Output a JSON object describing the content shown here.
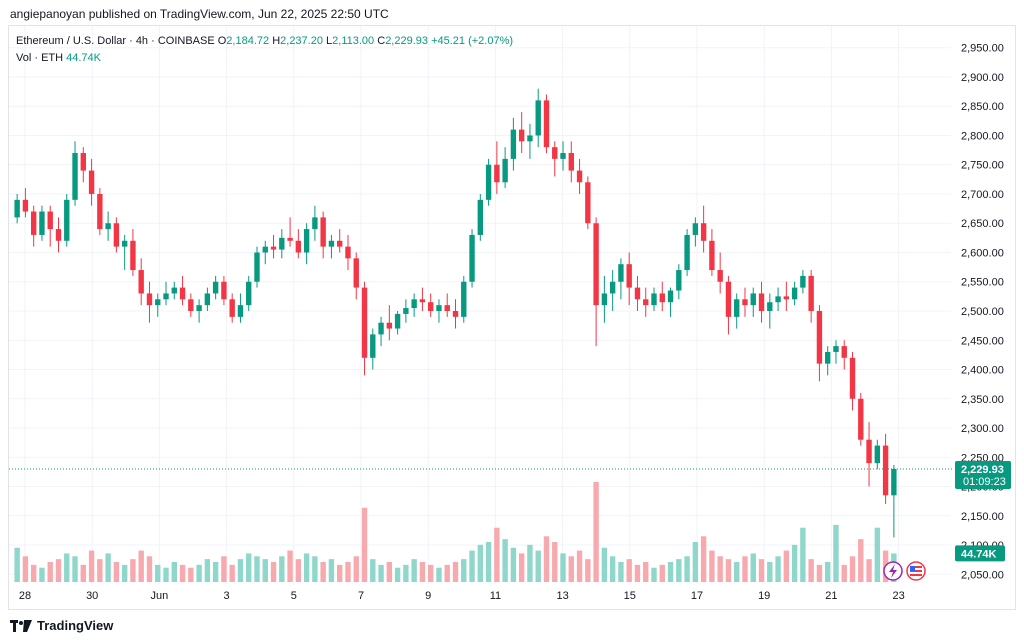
{
  "header": {
    "publisher": "angiepanoyan published on TradingView.com, Jun 22, 2025 22:50 UTC"
  },
  "legend": {
    "symbol": "Ethereum / U.S. Dollar · 4h · COINBASE",
    "o_label": "O",
    "o_value": "2,184.72",
    "h_label": "H",
    "h_value": "2,237.20",
    "l_label": "L",
    "l_value": "2,113.00",
    "c_label": "C",
    "c_value": "2,229.93",
    "change": "+45.21 (+2.07%)",
    "vol_label": "Vol · ETH",
    "vol_value": "44.74K"
  },
  "footer": {
    "brand": "TradingView"
  },
  "colors": {
    "up": "#089981",
    "down": "#f23645",
    "vol_up": "#8fd6cb",
    "vol_down": "#f7a9ae",
    "grid": "#f0f3fa",
    "text": "#131722"
  },
  "chart_data": {
    "type": "candlestick",
    "title": "Ethereum / U.S. Dollar · 4h · COINBASE",
    "x_ticks": [
      "28",
      "30",
      "Jun",
      "3",
      "5",
      "7",
      "9",
      "11",
      "13",
      "15",
      "17",
      "19",
      "21",
      "23"
    ],
    "y_ticks": [
      2050,
      2100,
      2150,
      2200,
      2250,
      2300,
      2350,
      2400,
      2450,
      2500,
      2550,
      2600,
      2650,
      2700,
      2750,
      2800,
      2850,
      2900,
      2950
    ],
    "y_tick_labels": [
      "2,050.00",
      "2,100.00",
      "2,150.00",
      "2,200.00",
      "2,250.00",
      "2,300.00",
      "2,350.00",
      "2,400.00",
      "2,450.00",
      "2,500.00",
      "2,550.00",
      "2,600.00",
      "2,650.00",
      "2,700.00",
      "2,750.00",
      "2,800.00",
      "2,850.00",
      "2,900.00",
      "2,950.00"
    ],
    "ylim": [
      2030,
      2970
    ],
    "last_price": "2,229.93",
    "countdown": "01:09:23",
    "last_volume": "44.74K",
    "candles_ohlc": [
      [
        2660,
        2700,
        2650,
        2690
      ],
      [
        2690,
        2710,
        2660,
        2670
      ],
      [
        2670,
        2680,
        2610,
        2630
      ],
      [
        2630,
        2680,
        2620,
        2670
      ],
      [
        2670,
        2680,
        2610,
        2640
      ],
      [
        2640,
        2660,
        2600,
        2620
      ],
      [
        2620,
        2700,
        2610,
        2690
      ],
      [
        2690,
        2790,
        2680,
        2770
      ],
      [
        2770,
        2780,
        2720,
        2740
      ],
      [
        2740,
        2760,
        2680,
        2700
      ],
      [
        2700,
        2710,
        2630,
        2640
      ],
      [
        2640,
        2670,
        2620,
        2650
      ],
      [
        2650,
        2660,
        2600,
        2610
      ],
      [
        2610,
        2630,
        2570,
        2620
      ],
      [
        2620,
        2640,
        2560,
        2570
      ],
      [
        2570,
        2590,
        2510,
        2530
      ],
      [
        2530,
        2550,
        2480,
        2510
      ],
      [
        2510,
        2530,
        2490,
        2520
      ],
      [
        2520,
        2550,
        2510,
        2530
      ],
      [
        2530,
        2550,
        2520,
        2540
      ],
      [
        2540,
        2560,
        2510,
        2520
      ],
      [
        2520,
        2530,
        2490,
        2500
      ],
      [
        2500,
        2520,
        2480,
        2510
      ],
      [
        2510,
        2540,
        2500,
        2530
      ],
      [
        2530,
        2560,
        2520,
        2550
      ],
      [
        2550,
        2560,
        2510,
        2520
      ],
      [
        2520,
        2530,
        2480,
        2490
      ],
      [
        2490,
        2530,
        2480,
        2510
      ],
      [
        2510,
        2560,
        2500,
        2550
      ],
      [
        2550,
        2610,
        2540,
        2600
      ],
      [
        2600,
        2620,
        2580,
        2610
      ],
      [
        2610,
        2630,
        2590,
        2605
      ],
      [
        2605,
        2640,
        2590,
        2625
      ],
      [
        2625,
        2660,
        2610,
        2620
      ],
      [
        2620,
        2640,
        2590,
        2600
      ],
      [
        2600,
        2650,
        2580,
        2640
      ],
      [
        2640,
        2680,
        2620,
        2660
      ],
      [
        2660,
        2670,
        2590,
        2610
      ],
      [
        2610,
        2630,
        2590,
        2620
      ],
      [
        2620,
        2640,
        2600,
        2610
      ],
      [
        2610,
        2630,
        2570,
        2590
      ],
      [
        2590,
        2600,
        2520,
        2540
      ],
      [
        2540,
        2550,
        2390,
        2420
      ],
      [
        2420,
        2470,
        2400,
        2460
      ],
      [
        2460,
        2490,
        2440,
        2480
      ],
      [
        2480,
        2510,
        2450,
        2470
      ],
      [
        2470,
        2500,
        2460,
        2495
      ],
      [
        2495,
        2520,
        2480,
        2505
      ],
      [
        2505,
        2530,
        2490,
        2520
      ],
      [
        2520,
        2540,
        2500,
        2515
      ],
      [
        2515,
        2530,
        2490,
        2500
      ],
      [
        2500,
        2520,
        2480,
        2510
      ],
      [
        2510,
        2530,
        2490,
        2500
      ],
      [
        2500,
        2520,
        2470,
        2490
      ],
      [
        2490,
        2560,
        2480,
        2550
      ],
      [
        2550,
        2640,
        2540,
        2630
      ],
      [
        2630,
        2700,
        2620,
        2690
      ],
      [
        2690,
        2760,
        2680,
        2750
      ],
      [
        2750,
        2790,
        2700,
        2720
      ],
      [
        2720,
        2780,
        2710,
        2760
      ],
      [
        2760,
        2830,
        2740,
        2810
      ],
      [
        2810,
        2840,
        2770,
        2790
      ],
      [
        2790,
        2820,
        2760,
        2800
      ],
      [
        2800,
        2880,
        2780,
        2860
      ],
      [
        2860,
        2870,
        2770,
        2780
      ],
      [
        2780,
        2790,
        2730,
        2760
      ],
      [
        2760,
        2790,
        2740,
        2770
      ],
      [
        2770,
        2790,
        2720,
        2740
      ],
      [
        2740,
        2760,
        2700,
        2720
      ],
      [
        2720,
        2730,
        2640,
        2650
      ],
      [
        2650,
        2660,
        2440,
        2510
      ],
      [
        2510,
        2560,
        2480,
        2530
      ],
      [
        2530,
        2570,
        2500,
        2550
      ],
      [
        2550,
        2590,
        2520,
        2580
      ],
      [
        2580,
        2600,
        2510,
        2540
      ],
      [
        2540,
        2560,
        2500,
        2520
      ],
      [
        2520,
        2540,
        2490,
        2510
      ],
      [
        2510,
        2540,
        2500,
        2530
      ],
      [
        2530,
        2550,
        2500,
        2515
      ],
      [
        2515,
        2540,
        2490,
        2535
      ],
      [
        2535,
        2580,
        2520,
        2570
      ],
      [
        2570,
        2640,
        2560,
        2630
      ],
      [
        2630,
        2660,
        2610,
        2650
      ],
      [
        2650,
        2680,
        2600,
        2620
      ],
      [
        2620,
        2640,
        2560,
        2570
      ],
      [
        2570,
        2600,
        2530,
        2550
      ],
      [
        2550,
        2560,
        2460,
        2490
      ],
      [
        2490,
        2530,
        2470,
        2520
      ],
      [
        2520,
        2540,
        2490,
        2510
      ],
      [
        2510,
        2540,
        2490,
        2530
      ],
      [
        2530,
        2550,
        2480,
        2500
      ],
      [
        2500,
        2530,
        2470,
        2515
      ],
      [
        2515,
        2540,
        2500,
        2525
      ],
      [
        2525,
        2550,
        2500,
        2520
      ],
      [
        2520,
        2550,
        2510,
        2540
      ],
      [
        2540,
        2570,
        2530,
        2560
      ],
      [
        2560,
        2570,
        2480,
        2500
      ],
      [
        2500,
        2510,
        2380,
        2410
      ],
      [
        2410,
        2440,
        2390,
        2430
      ],
      [
        2430,
        2450,
        2410,
        2440
      ],
      [
        2440,
        2450,
        2400,
        2420
      ],
      [
        2420,
        2430,
        2330,
        2350
      ],
      [
        2350,
        2360,
        2270,
        2280
      ],
      [
        2280,
        2310,
        2200,
        2240
      ],
      [
        2240,
        2280,
        2230,
        2270
      ],
      [
        2270,
        2290,
        2170,
        2185
      ],
      [
        2185,
        2237,
        2113,
        2230
      ]
    ],
    "volumes": [
      24,
      18,
      12,
      10,
      14,
      16,
      20,
      18,
      12,
      22,
      16,
      20,
      14,
      12,
      16,
      22,
      18,
      12,
      10,
      14,
      12,
      10,
      12,
      16,
      14,
      18,
      12,
      16,
      20,
      18,
      16,
      14,
      18,
      22,
      16,
      20,
      18,
      14,
      16,
      12,
      14,
      18,
      52,
      16,
      12,
      14,
      10,
      12,
      16,
      14,
      12,
      10,
      12,
      14,
      16,
      22,
      26,
      28,
      38,
      30,
      24,
      20,
      26,
      22,
      32,
      28,
      20,
      18,
      22,
      16,
      70,
      24,
      18,
      14,
      16,
      12,
      14,
      10,
      12,
      14,
      16,
      18,
      28,
      32,
      22,
      18,
      16,
      14,
      18,
      20,
      16,
      14,
      18,
      22,
      26,
      38,
      16,
      12,
      14,
      40,
      12,
      18,
      30,
      16,
      38,
      22,
      20
    ]
  }
}
